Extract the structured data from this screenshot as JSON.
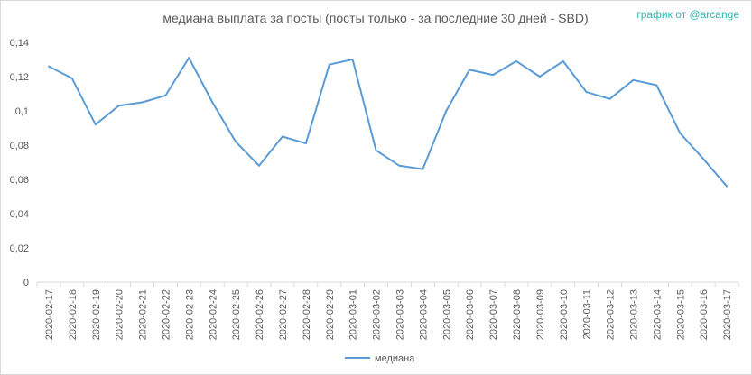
{
  "chart_data": {
    "type": "line",
    "title": "медиана выплата за посты  (посты только - за последние 30 дней - SBD)",
    "credit": "график от @arcange",
    "x": [
      "2020-02-17",
      "2020-02-18",
      "2020-02-19",
      "2020-02-20",
      "2020-02-21",
      "2020-02-22",
      "2020-02-23",
      "2020-02-24",
      "2020-02-25",
      "2020-02-26",
      "2020-02-27",
      "2020-02-28",
      "2020-02-29",
      "2020-03-01",
      "2020-03-02",
      "2020-03-03",
      "2020-03-04",
      "2020-03-05",
      "2020-03-06",
      "2020-03-07",
      "2020-03-08",
      "2020-03-09",
      "2020-03-10",
      "2020-03-11",
      "2020-03-12",
      "2020-03-13",
      "2020-03-14",
      "2020-03-15",
      "2020-03-16",
      "2020-03-17"
    ],
    "series": [
      {
        "name": "медиана",
        "color": "#5b9bd5",
        "values": [
          0.126,
          0.119,
          0.092,
          0.103,
          0.105,
          0.109,
          0.131,
          0.105,
          0.082,
          0.068,
          0.085,
          0.081,
          0.127,
          0.13,
          0.077,
          0.068,
          0.066,
          0.1,
          0.124,
          0.121,
          0.129,
          0.12,
          0.129,
          0.111,
          0.107,
          0.118,
          0.115,
          0.087,
          0.072,
          0.056
        ]
      }
    ],
    "ylim": [
      0,
      0.14
    ],
    "yticks": [
      0,
      0.02,
      0.04,
      0.06,
      0.08,
      0.1,
      0.12,
      0.14
    ],
    "ytick_labels": [
      "0",
      "0,02",
      "0,04",
      "0,06",
      "0,08",
      "0,1",
      "0,12",
      "0,14"
    ],
    "grid": false,
    "legend_position": "bottom"
  }
}
